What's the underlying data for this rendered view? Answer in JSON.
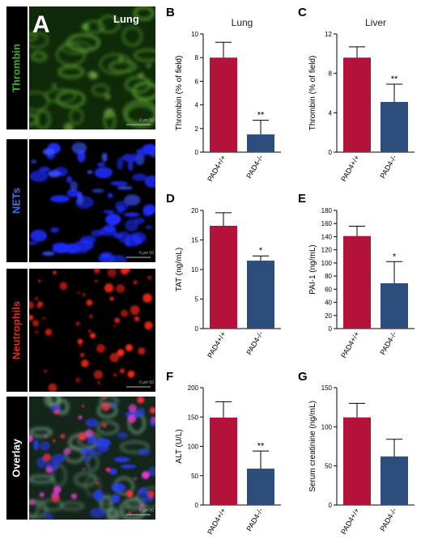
{
  "panel_a": {
    "letter": "A",
    "tissue_label": "Lung",
    "rows": [
      {
        "label": "Thrombin",
        "label_color": "#3fae2a",
        "stain": "green"
      },
      {
        "label": "NETs",
        "label_color": "#3f6fe8",
        "stain": "blue"
      },
      {
        "label": "Neutrophils",
        "label_color": "#e0291c",
        "stain": "red"
      },
      {
        "label": "Overlay",
        "label_color": "#ffffff",
        "stain": "overlay"
      }
    ],
    "scale_bar_text": "0 μm 50"
  },
  "colors": {
    "wildtype": "#b3123a",
    "knockout": "#2d4d7d"
  },
  "chart_data": [
    {
      "panel": "B",
      "type": "bar",
      "title": "Lung",
      "ylabel": "Thrombin (% of field)",
      "ylim": [
        0,
        10
      ],
      "yticks": [
        0,
        2,
        4,
        6,
        8,
        10
      ],
      "categories": [
        "PAD4+/+",
        "PAD4-/-"
      ],
      "values": [
        8.0,
        1.5
      ],
      "errors": [
        1.3,
        1.2
      ],
      "significance": [
        "",
        "**"
      ]
    },
    {
      "panel": "C",
      "type": "bar",
      "title": "Liver",
      "ylabel": "Thrombin (% of field)",
      "ylim": [
        0,
        12
      ],
      "yticks": [
        0,
        4,
        8,
        12
      ],
      "categories": [
        "PAD4+/+",
        "PAD4-/-"
      ],
      "values": [
        9.6,
        5.1
      ],
      "errors": [
        1.1,
        1.8
      ],
      "significance": [
        "",
        "**"
      ]
    },
    {
      "panel": "D",
      "type": "bar",
      "title": "",
      "ylabel": "TAT (ng/mL)",
      "ylim": [
        0,
        20
      ],
      "yticks": [
        0,
        5,
        10,
        15,
        20
      ],
      "categories": [
        "PAD4+/+",
        "PAD4-/-"
      ],
      "values": [
        17.4,
        11.5
      ],
      "errors": [
        2.2,
        0.8
      ],
      "significance": [
        "",
        "*"
      ]
    },
    {
      "panel": "E",
      "type": "bar",
      "title": "",
      "ylabel": "PAI-1 (ng/mL)",
      "ylim": [
        0,
        180
      ],
      "yticks": [
        0,
        20,
        40,
        60,
        80,
        100,
        120,
        140,
        160,
        180
      ],
      "categories": [
        "PAD4+/+",
        "PAD4-/-"
      ],
      "values": [
        141,
        69
      ],
      "errors": [
        15,
        33
      ],
      "significance": [
        "",
        "*"
      ]
    },
    {
      "panel": "F",
      "type": "bar",
      "title": "",
      "ylabel": "ALT (U/L)",
      "ylim": [
        0,
        200
      ],
      "yticks": [
        0,
        50,
        100,
        150,
        200
      ],
      "categories": [
        "PAD4+/+",
        "PAD4-/-"
      ],
      "values": [
        149,
        62
      ],
      "errors": [
        27,
        30
      ],
      "significance": [
        "",
        "**"
      ]
    },
    {
      "panel": "G",
      "type": "bar",
      "title": "",
      "ylabel": "Serum creatinine (ng/mL)",
      "ylim": [
        0,
        150
      ],
      "yticks": [
        0,
        50,
        100,
        150
      ],
      "categories": [
        "PAD4+/+",
        "PAD4-/-"
      ],
      "values": [
        112,
        62
      ],
      "errors": [
        18,
        22
      ],
      "significance": [
        "",
        ""
      ]
    }
  ]
}
